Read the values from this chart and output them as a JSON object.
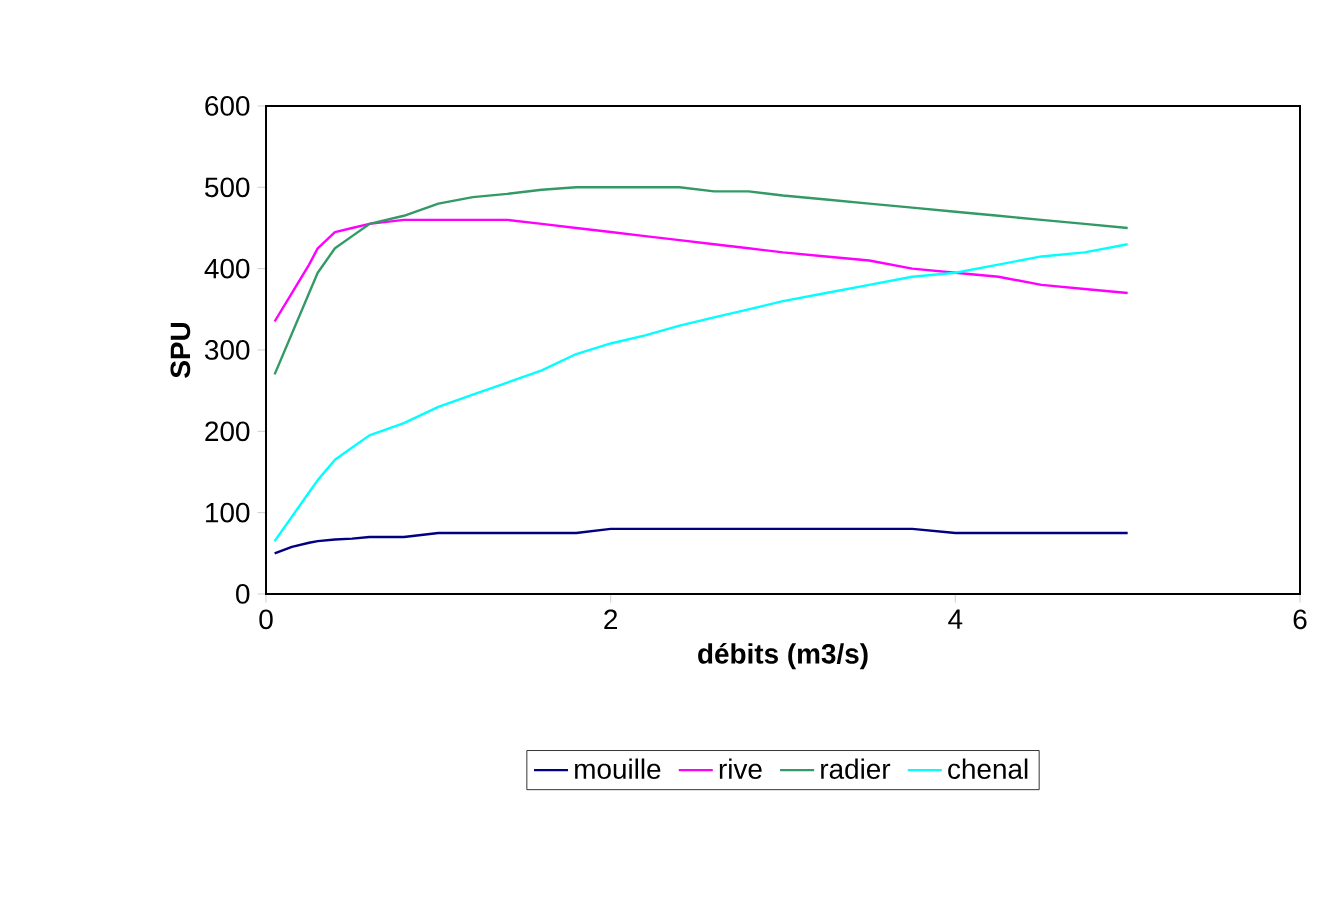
{
  "chart_data": {
    "type": "line",
    "xlabel": "débits (m3/s)",
    "ylabel": "SPU",
    "x": [
      0.05,
      0.15,
      0.25,
      0.3,
      0.4,
      0.5,
      0.6,
      0.8,
      1.0,
      1.2,
      1.4,
      1.6,
      1.8,
      2.0,
      2.2,
      2.4,
      2.6,
      2.8,
      3.0,
      3.25,
      3.5,
      3.75,
      4.0,
      4.25,
      4.5,
      4.75,
      5.0
    ],
    "series": [
      {
        "name": "mouille",
        "color": "#000080",
        "values": [
          50,
          58,
          63,
          65,
          67,
          68,
          70,
          70,
          75,
          75,
          75,
          75,
          75,
          80,
          80,
          80,
          80,
          80,
          80,
          80,
          80,
          80,
          75,
          75,
          75,
          75,
          75
        ]
      },
      {
        "name": "rive",
        "color": "#ff00ff",
        "values": [
          335,
          370,
          405,
          425,
          445,
          450,
          455,
          460,
          460,
          460,
          460,
          455,
          450,
          445,
          440,
          435,
          430,
          425,
          420,
          415,
          410,
          400,
          395,
          390,
          380,
          375,
          370
        ]
      },
      {
        "name": "radier",
        "color": "#339966",
        "values": [
          270,
          320,
          370,
          395,
          425,
          440,
          455,
          465,
          480,
          488,
          492,
          497,
          500,
          500,
          500,
          500,
          495,
          495,
          490,
          485,
          480,
          475,
          470,
          465,
          460,
          455,
          450
        ]
      },
      {
        "name": "chenal",
        "color": "#00ffff",
        "values": [
          65,
          95,
          125,
          140,
          165,
          180,
          195,
          210,
          230,
          245,
          260,
          275,
          295,
          308,
          318,
          330,
          340,
          350,
          360,
          370,
          380,
          390,
          395,
          405,
          415,
          420,
          430
        ]
      }
    ],
    "xlim": [
      0,
      6
    ],
    "ylim": [
      0,
      600
    ],
    "xticks": [
      0,
      2,
      4,
      6
    ],
    "yticks": [
      0,
      100,
      200,
      300,
      400,
      500,
      600
    ],
    "legend": "bottom",
    "grid": false,
    "marker": "none",
    "line_style": "solid"
  }
}
